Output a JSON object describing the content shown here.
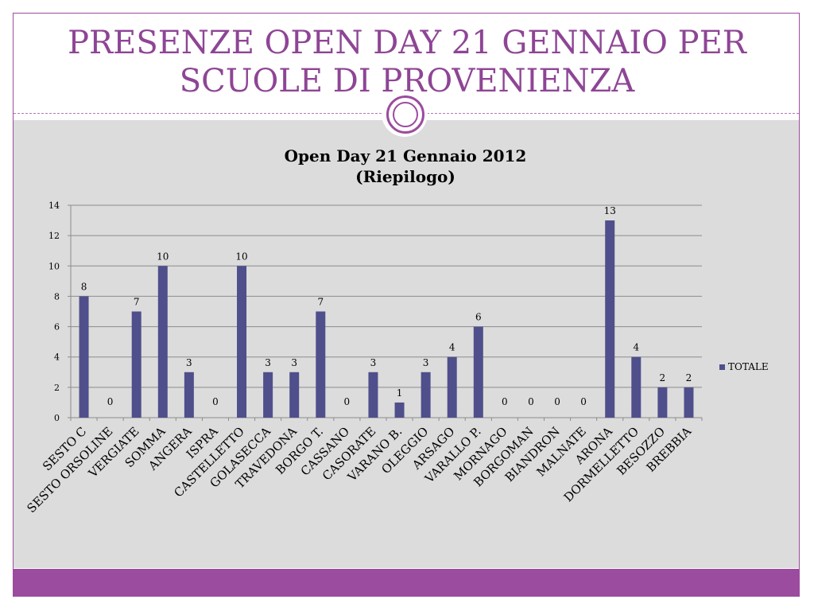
{
  "slide": {
    "title_line1": "PRESENZE OPEN DAY 21 GENNAIO PER",
    "title_line2": "SCUOLE DI PROVENIENZA"
  },
  "colors": {
    "accent": "#9b4c9e",
    "title": "#8e4595",
    "bar": "#4f4f8c",
    "content_bg": "#dcdcdc"
  },
  "chart_data": {
    "type": "bar",
    "title": "Open Day 21 Gennaio 2012",
    "subtitle": "(Riepilogo)",
    "categories": [
      "SESTO C",
      "SESTO ORSOLINE",
      "VERGIATE",
      "SOMMA",
      "ANGERA",
      "ISPRA",
      "CASTELLETTO",
      "GOLASECCA",
      "TRAVEDONA",
      "BORGO T.",
      "CASSANO",
      "CASORATE",
      "VARANO B.",
      "OLEGGIO",
      "ARSAGO",
      "VARALLO P.",
      "MORNAGO",
      "BORGOMAN",
      "BIANDRON",
      "MALNATE",
      "ARONA",
      "DORMELLETTO",
      "BESOZZO",
      "BREBBIA"
    ],
    "series": [
      {
        "name": "TOTALE",
        "values": [
          8,
          0,
          7,
          10,
          3,
          0,
          10,
          3,
          3,
          7,
          0,
          3,
          1,
          3,
          4,
          6,
          0,
          0,
          0,
          0,
          13,
          4,
          2,
          2
        ]
      }
    ],
    "ylim": [
      0,
      14
    ],
    "yticks": [
      0,
      2,
      4,
      6,
      8,
      10,
      12,
      14
    ],
    "grid": true,
    "legend": "right"
  }
}
